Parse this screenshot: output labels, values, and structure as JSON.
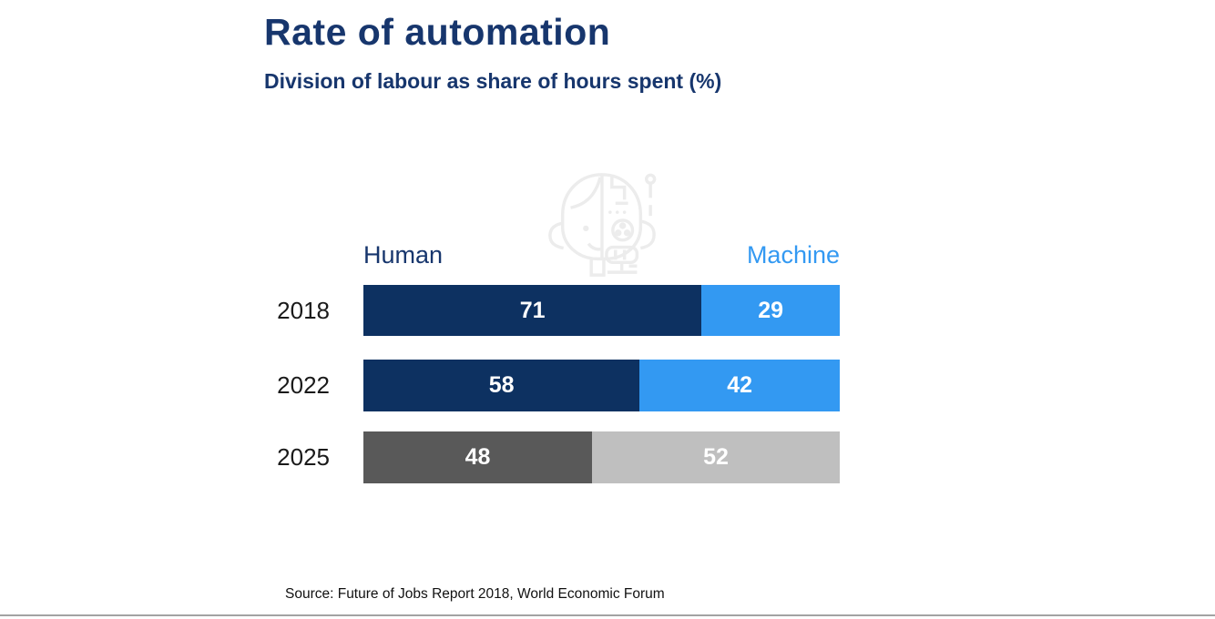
{
  "page": {
    "title": "Rate of automation",
    "subtitle": "Division of labour as share of hours spent (%)",
    "source": "Source: Future of Jobs Report 2018, World Economic Forum"
  },
  "legend": {
    "human": "Human",
    "machine": "Machine"
  },
  "rows": [
    {
      "year": "2018",
      "human": 71,
      "machine": 29,
      "human_color": "#0d3161",
      "machine_color": "#3399f2"
    },
    {
      "year": "2022",
      "human": 58,
      "machine": 42,
      "human_color": "#0d3161",
      "machine_color": "#3399f2"
    },
    {
      "year": "2025",
      "human": 48,
      "machine": 52,
      "human_color": "#595959",
      "machine_color": "#bfbfbf"
    }
  ],
  "colors": {
    "heading_navy": "#17366d",
    "human_bar_navy": "#0d3161",
    "machine_bar_blue": "#3399f2",
    "human_bar_gray_2025": "#595959",
    "machine_bar_gray_2025": "#bfbfbf",
    "machine_label_blue": "#3399f2",
    "bar_value_text": "#ffffff",
    "year_label": "#1a1a1a",
    "icon_gray": "#ececec",
    "bottom_rule_gray": "#a3a3a3"
  },
  "icons": {
    "robot": "half-human-half-robot-head-icon"
  },
  "chart_data": {
    "type": "bar",
    "orientation": "horizontal-stacked",
    "title": "Rate of automation",
    "subtitle": "Division of labour as share of hours spent (%)",
    "categories": [
      "2018",
      "2022",
      "2025"
    ],
    "series": [
      {
        "name": "Human",
        "values": [
          71,
          58,
          48
        ]
      },
      {
        "name": "Machine",
        "values": [
          29,
          42,
          52
        ]
      }
    ],
    "xlim": [
      0,
      100
    ],
    "unit": "% of hours spent",
    "value_labels": true,
    "grid": false,
    "legend_position": "above-bars",
    "source": "Source: Future of Jobs Report 2018, World Economic Forum",
    "notes": "2025 row rendered in grays (forecast); 2018 and 2022 rows in navy/blue"
  }
}
